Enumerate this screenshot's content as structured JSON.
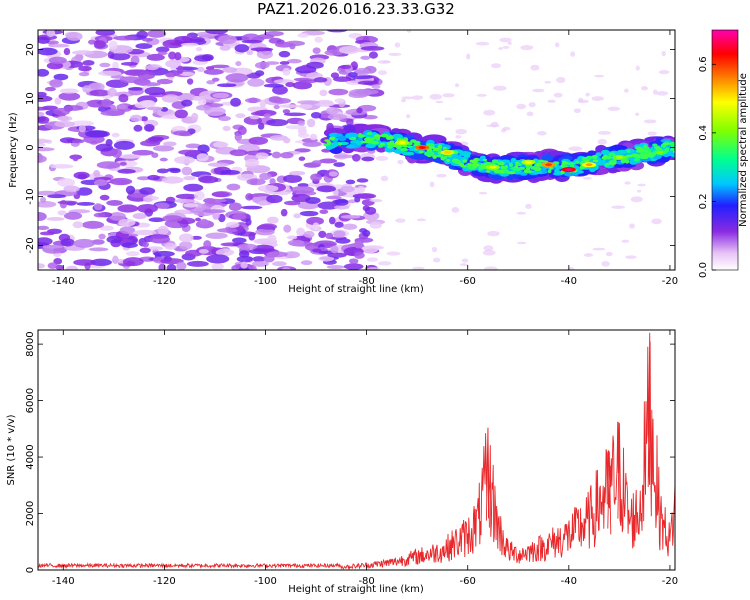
{
  "title": "PAZ1.2026.016.23.33.G32",
  "chart_data": [
    {
      "type": "heatmap",
      "xlabel": "Height of straight line (km)",
      "ylabel": "Frequency (Hz)",
      "xlim": [
        -145,
        -19
      ],
      "ylim": [
        -25,
        24
      ],
      "xticks": [
        -140,
        -120,
        -100,
        -80,
        -60,
        -40,
        -20
      ],
      "yticks": [
        -20,
        -10,
        0,
        10,
        20
      ],
      "colorbar": {
        "label": "Normalized spectral amplitude",
        "range": [
          0.0,
          0.7
        ],
        "ticks": [
          0.0,
          0.2,
          0.4,
          0.6
        ]
      },
      "ridge": {
        "description_points_x": [
          -85,
          -80,
          -75,
          -70,
          -65,
          -60,
          -55,
          -50,
          -45,
          -40,
          -35,
          -30,
          -25,
          -20
        ],
        "frequency_hz": [
          1,
          2,
          1,
          0,
          -1,
          -3,
          -4,
          -4,
          -3.5,
          -4,
          -3,
          -2,
          -1,
          0
        ]
      }
    },
    {
      "type": "line",
      "xlabel": "Height of straight line (km)",
      "ylabel": "SNR (10 * v/v)",
      "xlim": [
        -145,
        -19
      ],
      "ylim": [
        0,
        8500
      ],
      "xticks": [
        -140,
        -120,
        -100,
        -80,
        -60,
        -40,
        -20
      ],
      "yticks": [
        0,
        2000,
        4000,
        6000,
        8000
      ],
      "series": [
        {
          "name": "SNR",
          "color": "#e8282b",
          "x": [
            -145,
            -85,
            -80,
            -75,
            -70,
            -65,
            -60,
            -58,
            -56,
            -54,
            -52,
            -50,
            -45,
            -40,
            -36,
            -34,
            -32,
            -30,
            -28,
            -26,
            -24,
            -22,
            -20,
            -19
          ],
          "y": [
            150,
            150,
            250,
            400,
            700,
            1000,
            1800,
            2500,
            5000,
            2200,
            1000,
            800,
            1200,
            1800,
            2600,
            3500,
            4200,
            5200,
            2500,
            3000,
            8400,
            2800,
            1500,
            3300
          ]
        }
      ]
    }
  ]
}
